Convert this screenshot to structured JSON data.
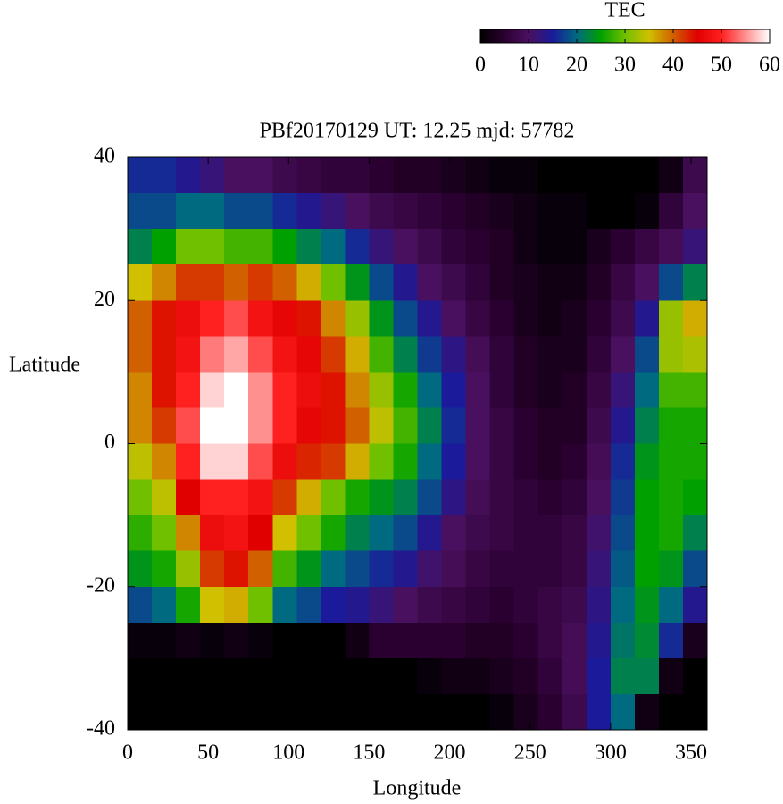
{
  "chart_data": {
    "type": "heatmap",
    "title": "PBf20170129  UT: 12.25  mjd: 57782",
    "xlabel": "Longitude",
    "ylabel": "Latitude",
    "colorbar_label": "TEC",
    "xlim": [
      0,
      360
    ],
    "ylim": [
      -40,
      40
    ],
    "xticks": [
      0,
      50,
      100,
      150,
      200,
      250,
      300,
      350
    ],
    "yticks": [
      -40,
      -20,
      0,
      20,
      40
    ],
    "clim": [
      0,
      60
    ],
    "cticks": [
      0,
      10,
      20,
      30,
      40,
      50,
      60
    ],
    "colorscale": [
      "#000000",
      "#2a0030",
      "#4a1060",
      "#1a1a9a",
      "#006a80",
      "#00a000",
      "#70c000",
      "#d0c000",
      "#d06000",
      "#e00000",
      "#ff2020",
      "#ff9090",
      "#ffffff"
    ],
    "x": [
      7.5,
      22.5,
      37.5,
      52.5,
      67.5,
      82.5,
      97.5,
      112.5,
      127.5,
      142.5,
      157.5,
      172.5,
      187.5,
      202.5,
      217.5,
      232.5,
      247.5,
      262.5,
      277.5,
      292.5,
      307.5,
      322.5,
      337.5,
      352.5
    ],
    "y": [
      37.5,
      32.5,
      27.5,
      22.5,
      17.5,
      12.5,
      7.5,
      2.5,
      -2.5,
      -7.5,
      -12.5,
      -17.5,
      -22.5,
      -27.5,
      -32.5,
      -37.5
    ],
    "z": [
      [
        16,
        16,
        14,
        12,
        10,
        10,
        8,
        7,
        6,
        6,
        5,
        4,
        4,
        3,
        2,
        1,
        1,
        0,
        0,
        0,
        0,
        0,
        2,
        8
      ],
      [
        18,
        18,
        20,
        20,
        18,
        18,
        16,
        14,
        12,
        10,
        8,
        7,
        6,
        5,
        4,
        3,
        2,
        1,
        1,
        0,
        0,
        1,
        6,
        10
      ],
      [
        22,
        25,
        30,
        30,
        28,
        28,
        25,
        22,
        20,
        16,
        12,
        10,
        8,
        6,
        5,
        4,
        2,
        1,
        1,
        3,
        5,
        7,
        9,
        12
      ],
      [
        35,
        38,
        42,
        42,
        40,
        42,
        40,
        36,
        30,
        24,
        18,
        14,
        10,
        8,
        6,
        4,
        3,
        2,
        2,
        4,
        7,
        10,
        18,
        22
      ],
      [
        40,
        44,
        47,
        50,
        52,
        48,
        46,
        44,
        38,
        32,
        24,
        18,
        14,
        10,
        7,
        5,
        3,
        2,
        3,
        5,
        8,
        14,
        32,
        36
      ],
      [
        40,
        44,
        48,
        54,
        56,
        52,
        48,
        46,
        42,
        36,
        28,
        22,
        17,
        13,
        9,
        6,
        4,
        3,
        3,
        6,
        10,
        18,
        32,
        33
      ],
      [
        38,
        44,
        50,
        58,
        60,
        55,
        50,
        47,
        44,
        38,
        32,
        26,
        20,
        15,
        10,
        6,
        4,
        3,
        4,
        7,
        12,
        20,
        28,
        28
      ],
      [
        38,
        42,
        52,
        60,
        60,
        55,
        50,
        46,
        44,
        40,
        34,
        28,
        22,
        16,
        10,
        7,
        5,
        4,
        4,
        8,
        14,
        22,
        26,
        26
      ],
      [
        34,
        38,
        50,
        58,
        58,
        52,
        47,
        43,
        42,
        36,
        30,
        26,
        20,
        15,
        10,
        7,
        5,
        4,
        5,
        9,
        16,
        24,
        26,
        26
      ],
      [
        30,
        34,
        45,
        50,
        50,
        48,
        42,
        36,
        30,
        26,
        24,
        22,
        18,
        13,
        9,
        7,
        6,
        5,
        6,
        10,
        17,
        25,
        26,
        25
      ],
      [
        27,
        30,
        38,
        47,
        48,
        45,
        35,
        30,
        26,
        22,
        20,
        18,
        14,
        10,
        8,
        7,
        6,
        6,
        7,
        11,
        18,
        25,
        26,
        22
      ],
      [
        24,
        26,
        32,
        42,
        44,
        40,
        28,
        24,
        20,
        18,
        16,
        14,
        11,
        9,
        7,
        6,
        6,
        6,
        7,
        12,
        19,
        25,
        24,
        18
      ],
      [
        18,
        20,
        26,
        35,
        36,
        30,
        20,
        18,
        15,
        14,
        12,
        10,
        8,
        7,
        6,
        5,
        6,
        7,
        8,
        13,
        20,
        24,
        20,
        14
      ],
      [
        1,
        1,
        2,
        1,
        2,
        1,
        0,
        0,
        0,
        2,
        5,
        5,
        5,
        5,
        4,
        4,
        5,
        7,
        9,
        14,
        21,
        23,
        16,
        3
      ],
      [
        0,
        0,
        0,
        0,
        0,
        0,
        0,
        0,
        0,
        0,
        0,
        0,
        1,
        2,
        2,
        3,
        4,
        6,
        9,
        15,
        22,
        22,
        2,
        0
      ],
      [
        0,
        0,
        0,
        0,
        0,
        0,
        0,
        0,
        0,
        0,
        0,
        0,
        0,
        0,
        0,
        1,
        3,
        5,
        8,
        15,
        20,
        2,
        0,
        0
      ]
    ]
  }
}
